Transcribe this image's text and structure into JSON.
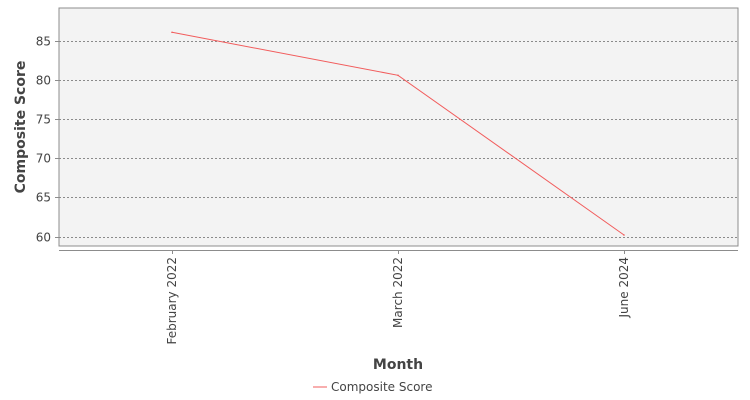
{
  "chart_data": {
    "type": "line",
    "categories": [
      "February 2022",
      "March 2022",
      "June 2024"
    ],
    "series": [
      {
        "name": "Composite Score",
        "values": [
          86.1,
          80.6,
          60.2
        ],
        "color": "#f25c5c"
      }
    ],
    "xlabel": "Month",
    "ylabel": "Composite Score",
    "ylim": [
      58.8,
      89.2
    ],
    "yticks": [
      60,
      65,
      70,
      75,
      80,
      85
    ],
    "grid": true,
    "legend_position": "bottom-center",
    "plot_background": "#f3f3f3"
  }
}
